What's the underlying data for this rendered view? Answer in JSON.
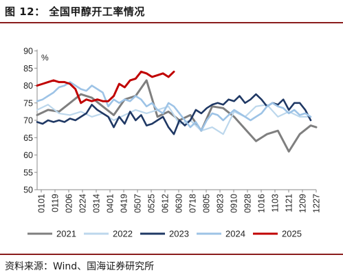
{
  "figure_title": "图 12：   全国甲醇开工率情况",
  "source_note": "资料来源：Wind、国海证券研究所",
  "colors": {
    "rule": "#8a1c1c",
    "2021": "#7f7f7f",
    "2022": "#bcd7ec",
    "2023": "#1f3864",
    "2024": "#9dc3e6",
    "2025": "#c00000"
  },
  "chart_data": {
    "type": "line",
    "title": "",
    "xlabel": "",
    "ylabel": "",
    "unit": "%",
    "ylim": [
      50,
      90
    ],
    "yticks": [
      50,
      55,
      60,
      65,
      70,
      75,
      80,
      85,
      90
    ],
    "x_ticks": [
      "0101",
      "0119",
      "0206",
      "0224",
      "0314",
      "0401",
      "0419",
      "0507",
      "0525",
      "0612",
      "0630",
      "0718",
      "0805",
      "0823",
      "0910",
      "0928",
      "1016",
      "1103",
      "1121",
      "1209",
      "1227"
    ],
    "x_domain": [
      0,
      51
    ],
    "grid": false,
    "legend_position": "bottom",
    "series": [
      {
        "name": "2021",
        "x": [
          0,
          2,
          4,
          6,
          8,
          10,
          12,
          14,
          16,
          18,
          20,
          22,
          24,
          26,
          28,
          30,
          32,
          34,
          36,
          38,
          40,
          42,
          44,
          46,
          48,
          50,
          51
        ],
        "values": [
          71.5,
          73,
          72.5,
          75,
          77.5,
          76.5,
          74,
          71.5,
          76,
          77,
          81.5,
          71,
          72.5,
          70,
          71.5,
          67,
          74,
          73.5,
          71,
          67.5,
          64,
          66,
          67,
          61,
          66,
          68.5,
          68
        ]
      },
      {
        "name": "2022",
        "x": [
          0,
          2,
          4,
          6,
          8,
          10,
          12,
          14,
          16,
          18,
          20,
          22,
          24,
          26,
          28,
          30,
          32,
          34,
          36,
          38,
          40,
          42,
          44,
          46,
          48,
          50
        ],
        "values": [
          73,
          74.5,
          72,
          71.5,
          72.5,
          71,
          72,
          70,
          71.5,
          73,
          72,
          73,
          74,
          69,
          70,
          67,
          68,
          66,
          72.5,
          71,
          74,
          74.5,
          71,
          72.5,
          71,
          71
        ]
      },
      {
        "name": "2023",
        "x": [
          0,
          1,
          2,
          3,
          4,
          5,
          6,
          7,
          8,
          9,
          10,
          11,
          12,
          13,
          14,
          15,
          16,
          17,
          18,
          19,
          20,
          21,
          22,
          23,
          24,
          25,
          26,
          27,
          28,
          29,
          30,
          31,
          32,
          33,
          34,
          35,
          36,
          37,
          38,
          39,
          40,
          41,
          42,
          43,
          44,
          45,
          46,
          47,
          48,
          49,
          50
        ],
        "values": [
          69.5,
          69,
          70,
          69.5,
          70,
          69.5,
          70.5,
          70,
          71,
          72,
          74.5,
          73,
          72,
          71,
          68,
          71,
          69,
          72.5,
          70,
          71.5,
          68.5,
          69,
          70,
          71,
          68,
          66,
          70,
          68.5,
          70,
          73,
          72,
          73.5,
          74.5,
          75,
          74.5,
          76,
          75.5,
          77,
          75,
          76,
          77.5,
          76,
          74,
          75,
          74.5,
          76,
          73,
          75,
          75,
          73,
          70
        ]
      },
      {
        "name": "2024",
        "x": [
          0,
          1,
          2,
          3,
          4,
          5,
          6,
          7,
          8,
          9,
          10,
          11,
          12,
          13,
          14,
          15,
          16,
          17,
          18,
          19,
          20,
          21,
          22,
          23,
          24,
          25,
          26,
          27,
          28,
          29,
          30,
          31,
          32,
          33,
          34,
          35,
          36,
          37,
          38,
          39,
          40,
          41,
          42,
          43,
          44,
          45,
          46,
          47,
          48,
          49,
          50
        ],
        "values": [
          75.5,
          76,
          77,
          78,
          79.5,
          80,
          81,
          80,
          79,
          78.5,
          80,
          79,
          78,
          74,
          76,
          75,
          76,
          75.5,
          77,
          76,
          74,
          75,
          73,
          72,
          75,
          74,
          72,
          70,
          68,
          69.5,
          67,
          70,
          72,
          71.5,
          70,
          71.5,
          73,
          72,
          71,
          70,
          71,
          72,
          74,
          75,
          74,
          73.5,
          72,
          73,
          71.5,
          72,
          71
        ]
      },
      {
        "name": "2025",
        "x": [
          0,
          1,
          2,
          3,
          4,
          5,
          6,
          7,
          8,
          9,
          10,
          11,
          12,
          13,
          14,
          15,
          16,
          17,
          18,
          19,
          20,
          21,
          22,
          23,
          24,
          25
        ],
        "values": [
          80,
          80.5,
          81,
          81.5,
          81,
          81,
          80.5,
          79,
          75,
          76,
          75.5,
          76,
          75.5,
          75.5,
          77,
          80.5,
          79.5,
          81.5,
          82,
          84,
          83.5,
          82.5,
          83,
          83.5,
          82.5,
          84
        ]
      }
    ]
  }
}
